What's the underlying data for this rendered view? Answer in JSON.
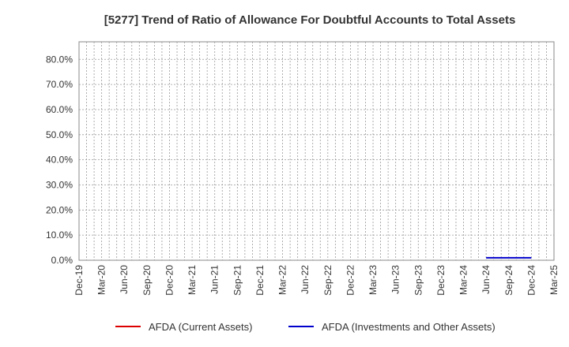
{
  "chart_data": {
    "type": "line",
    "title": "[5277]  Trend of Ratio of Allowance For Doubtful Accounts to Total Assets",
    "xlabel": "",
    "ylabel": "",
    "x_ticks": [
      "Dec-19",
      "Mar-20",
      "Jun-20",
      "Sep-20",
      "Dec-20",
      "Mar-21",
      "Jun-21",
      "Sep-21",
      "Dec-21",
      "Mar-22",
      "Jun-22",
      "Sep-22",
      "Dec-22",
      "Mar-23",
      "Jun-23",
      "Sep-23",
      "Dec-23",
      "Mar-24",
      "Jun-24",
      "Sep-24",
      "Dec-24",
      "Mar-25"
    ],
    "y_ticks": [
      "0.0%",
      "10.0%",
      "20.0%",
      "30.0%",
      "40.0%",
      "50.0%",
      "60.0%",
      "70.0%",
      "80.0%"
    ],
    "ylim": [
      0,
      87
    ],
    "y_unit": "%",
    "grid": true,
    "legend_position": "bottom",
    "series": [
      {
        "name": "AFDA (Current Assets)",
        "color": "#dd0000",
        "points": []
      },
      {
        "name": "AFDA (Investments and Other Assets)",
        "color": "#0000cc",
        "points": [
          {
            "x": "Jun-24",
            "y": 1.0
          },
          {
            "x": "Sep-24",
            "y": 1.0
          },
          {
            "x": "Dec-24",
            "y": 1.0
          }
        ]
      }
    ]
  }
}
